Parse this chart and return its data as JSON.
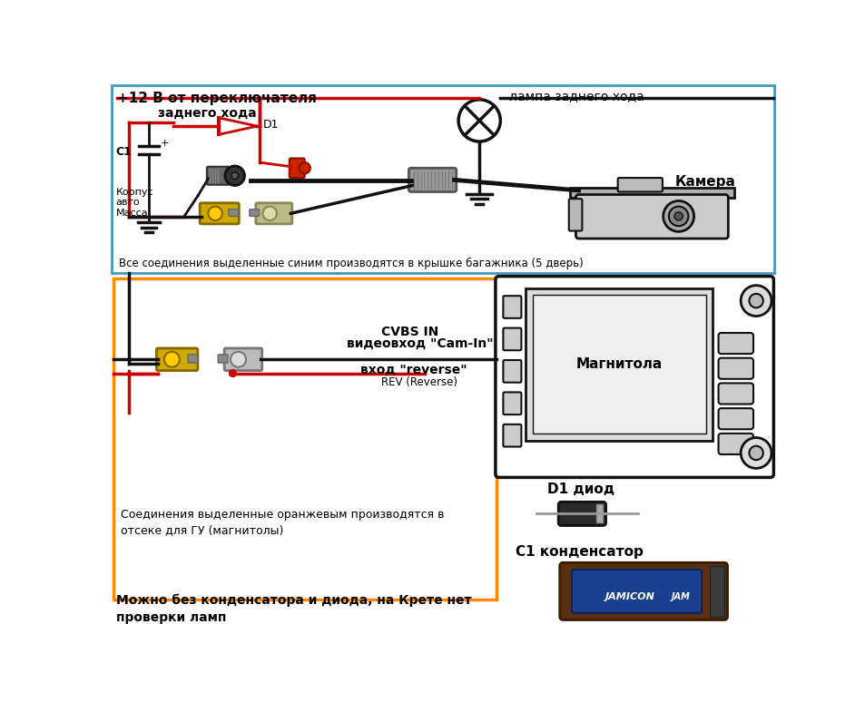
{
  "bg": "#ffffff",
  "top_border": "#4499bb",
  "bot_border": "#ff8800",
  "red": "#cc0000",
  "black": "#111111",
  "text_12v": "+12 В от переключателя",
  "text_zadnego": "заднего хода",
  "text_d1": "D1",
  "text_corpus": "Корпус\nавто\nМасса",
  "text_c1": "C1",
  "text_lampa": "лампа заднего хода",
  "text_kamera": "Камера",
  "text_blue_note": "Все соединения выделенные синим производятся в крышке багажника (5 дверь)",
  "text_cvbs": "CVBS IN",
  "text_videovhod": "видеовход \"Cam-In\"",
  "text_vhod": "вход \"reverse\"",
  "text_rev": "REV (Reverse)",
  "text_magnitola": "Магнитола",
  "text_orange_note": "Соединения выделенные оранжевым производятся в\nотсеке для ГУ (магнитолы)",
  "text_d1_diod": "D1 диод",
  "text_c1_cond": "C1 конденсатор",
  "text_bottom_note": "Можно без конденсатора и диода, на Крете нет\nпроверки ламп"
}
